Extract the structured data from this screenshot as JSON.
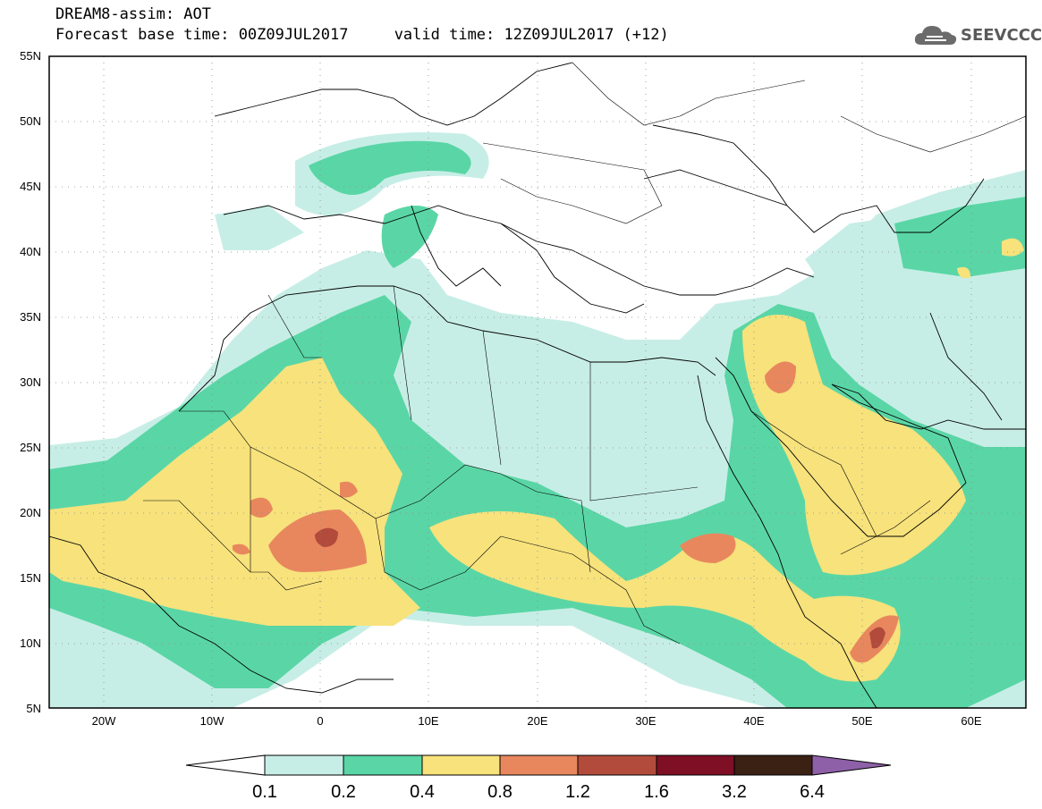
{
  "header": {
    "line1": "DREAM8-assim: AOT",
    "line2": "Forecast base time: 00Z09JUL2017     valid time: 12Z09JUL2017 (+12)"
  },
  "logo": {
    "text": "SEEVCCC",
    "icon": "cloud-icon"
  },
  "map": {
    "lon_range": [
      -25,
      65
    ],
    "lat_range": [
      5,
      55
    ],
    "lat_ticks": [
      "55N",
      "50N",
      "45N",
      "40N",
      "35N",
      "30N",
      "25N",
      "20N",
      "15N",
      "10N",
      "5N"
    ],
    "lon_ticks": [
      "20W",
      "10W",
      "0",
      "10E",
      "20E",
      "30E",
      "40E",
      "50E",
      "60E"
    ],
    "grid": "dotted"
  },
  "colorbar": {
    "labels": [
      "0.1",
      "0.2",
      "0.4",
      "0.8",
      "1.2",
      "1.6",
      "3.2",
      "6.4"
    ],
    "colors": [
      "#ffffff",
      "#c7eee6",
      "#5ad6a6",
      "#f7e27c",
      "#e8875e",
      "#b24b3c",
      "#7e0f24",
      "#3b2114",
      "#8e60a8"
    ]
  }
}
